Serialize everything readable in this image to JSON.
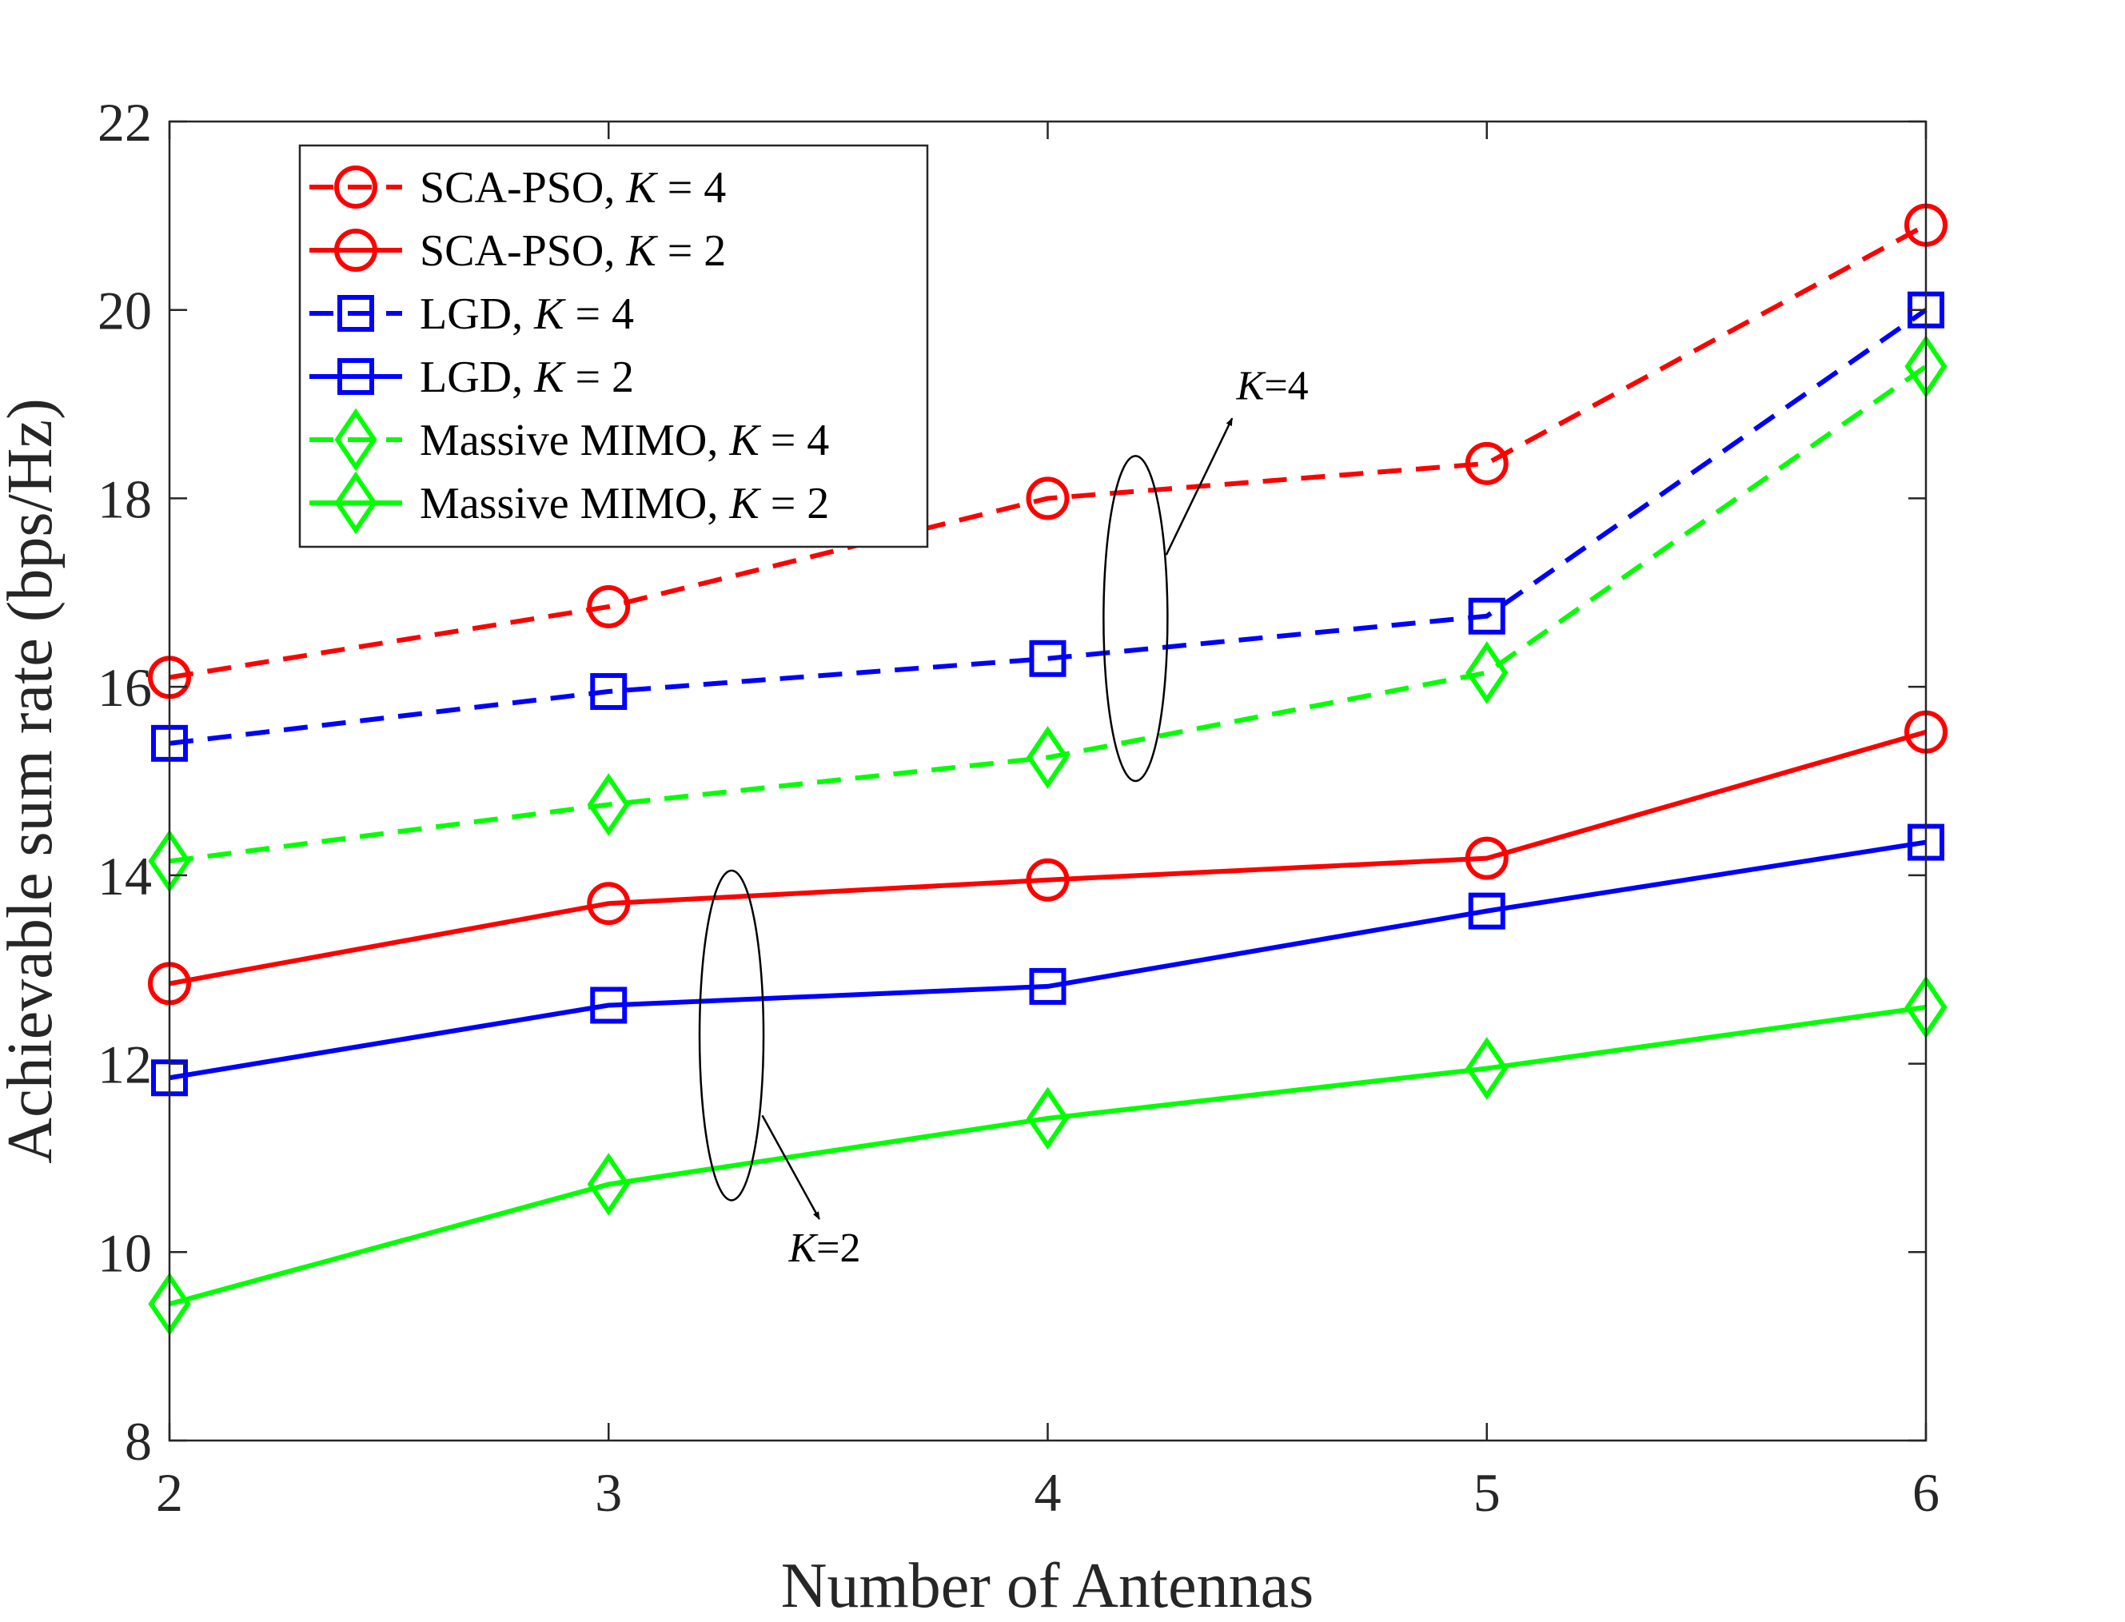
{
  "chart_data": {
    "type": "line",
    "title": "",
    "xlabel": "Number of Antennas",
    "ylabel": "Achievable sum rate (bps/Hz)",
    "xlim": [
      2,
      6
    ],
    "ylim": [
      8,
      22
    ],
    "xticks": [
      2,
      3,
      4,
      5,
      6
    ],
    "yticks": [
      8,
      10,
      12,
      14,
      16,
      18,
      20,
      22
    ],
    "grid": false,
    "legend_position": "top-left",
    "x": [
      2,
      3,
      4,
      5,
      6
    ],
    "series": [
      {
        "name": "SCA-PSO",
        "k_label": "K = 4",
        "color": "#ff0000",
        "dash": "dashed",
        "marker": "circle",
        "values": [
          16.1,
          16.85,
          18.0,
          18.37,
          20.9
        ]
      },
      {
        "name": "SCA-PSO",
        "k_label": "K = 2",
        "color": "#ff0000",
        "dash": "solid",
        "marker": "circle",
        "values": [
          12.85,
          13.7,
          13.95,
          14.18,
          15.52
        ]
      },
      {
        "name": "LGD",
        "k_label": "K = 4",
        "color": "#0000ff",
        "dash": "dashed",
        "marker": "square",
        "values": [
          15.4,
          15.95,
          16.3,
          16.75,
          20.0
        ]
      },
      {
        "name": "LGD",
        "k_label": "K = 2",
        "color": "#0000ff",
        "dash": "solid",
        "marker": "square",
        "values": [
          11.85,
          12.62,
          12.82,
          13.62,
          14.35
        ]
      },
      {
        "name": "Massive MIMO",
        "k_label": "K = 4",
        "color": "#00ff00",
        "dash": "dashed",
        "marker": "diamond",
        "values": [
          14.15,
          14.75,
          15.25,
          16.15,
          19.4
        ]
      },
      {
        "name": "Massive MIMO",
        "k_label": "K = 2",
        "color": "#00ff00",
        "dash": "solid",
        "marker": "diamond",
        "values": [
          9.45,
          10.72,
          11.42,
          11.95,
          12.6
        ]
      }
    ],
    "annotations": [
      {
        "label": "K=4",
        "points_to": "K = 4 curves",
        "ellipse_x": 4.2,
        "ellipse_y": [
          15.0,
          18.45
        ],
        "arrow_from": [
          4.27,
          17.4
        ],
        "arrow_to": [
          4.42,
          18.85
        ],
        "text_at": [
          4.43,
          19.05
        ]
      },
      {
        "label": "K=2",
        "points_to": "K = 2 curves",
        "ellipse_x": 3.28,
        "ellipse_y": [
          10.55,
          14.05
        ],
        "arrow_from": [
          3.35,
          11.45
        ],
        "arrow_to": [
          3.48,
          10.35
        ],
        "text_at": [
          3.41,
          9.9
        ]
      }
    ]
  }
}
